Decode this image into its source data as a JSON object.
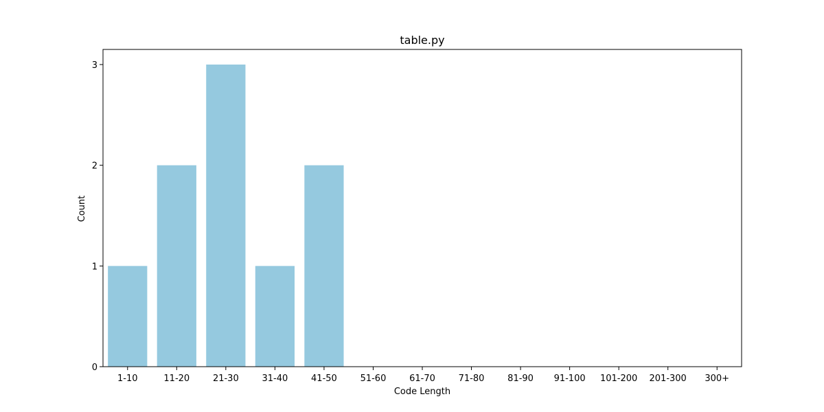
{
  "chart_data": {
    "type": "bar",
    "title": "table.py",
    "xlabel": "Code Length",
    "ylabel": "Count",
    "categories": [
      "1-10",
      "11-20",
      "21-30",
      "31-40",
      "41-50",
      "51-60",
      "61-70",
      "71-80",
      "81-90",
      "91-100",
      "101-200",
      "201-300",
      "300+"
    ],
    "values": [
      1,
      2,
      3,
      1,
      2,
      0,
      0,
      0,
      0,
      0,
      0,
      0,
      0
    ],
    "ylim": [
      0,
      3.15
    ],
    "yticks": [
      0,
      1,
      2,
      3
    ],
    "bar_color": "#95c9df",
    "grid": false,
    "legend": "none"
  }
}
